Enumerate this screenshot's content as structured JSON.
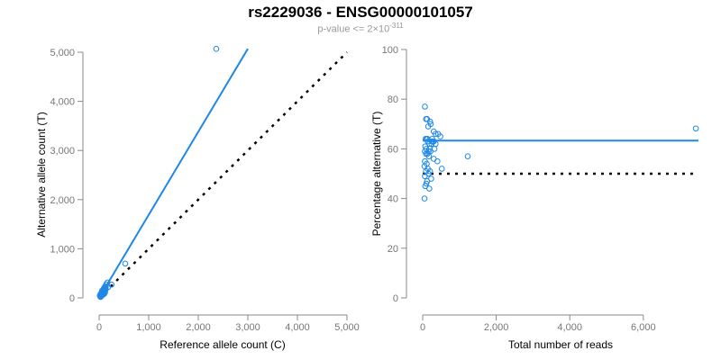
{
  "title": "rs2229036 - ENSG00000101057",
  "subtitle": {
    "prefix": "p-value <= 2",
    "times": "×",
    "base": "10",
    "exponent": "-311"
  },
  "colors": {
    "points": "#1e88e5",
    "line": "#1e88e5",
    "reference": "#000000",
    "axis": "#888888"
  },
  "chart_data": [
    {
      "type": "scatter",
      "xlabel": "Reference allele count (C)",
      "ylabel": "Alternative allele count (T)",
      "xlim": [
        0,
        5000
      ],
      "ylim": [
        0,
        5000
      ],
      "xticks": [
        0,
        1000,
        2000,
        3000,
        4000,
        5000
      ],
      "xtick_labels": [
        "0",
        "1,000",
        "2,000",
        "3,000",
        "4,000",
        "5,000"
      ],
      "yticks": [
        0,
        1000,
        2000,
        3000,
        4000,
        5000
      ],
      "ytick_labels": [
        "0",
        "1,000",
        "2,000",
        "3,000",
        "4,000",
        "5,000"
      ],
      "fit_line": {
        "slope": 1.69,
        "x_end": 3000
      },
      "reference_line": {
        "slope": 1,
        "x_end": 5000
      }
    },
    {
      "type": "scatter",
      "xlabel": "Total number of reads",
      "ylabel": "Percentage alternative (T)",
      "xlim": [
        0,
        7500
      ],
      "ylim": [
        0,
        100
      ],
      "xticks": [
        0,
        2000,
        4000,
        6000
      ],
      "xtick_labels": [
        "0",
        "2,000",
        "4,000",
        "6,000"
      ],
      "yticks": [
        0,
        20,
        40,
        60,
        80,
        100
      ],
      "ytick_labels": [
        "0",
        "20",
        "40",
        "60",
        "80",
        "100"
      ],
      "mean_line": 63.3,
      "reference_line": 50
    }
  ],
  "points": {
    "total": [
      60,
      120,
      90,
      200,
      220,
      150,
      300,
      350,
      420,
      480,
      80,
      110,
      260,
      300,
      140,
      180,
      240,
      70,
      320,
      100,
      160,
      210,
      90,
      130,
      170,
      300,
      60,
      110,
      50,
      520,
      140,
      90,
      200,
      160,
      60,
      230,
      120,
      100,
      70,
      180,
      50,
      400,
      250,
      130,
      1225,
      7430,
      280,
      350,
      60,
      190
    ],
    "pct": [
      77,
      72,
      72,
      71,
      70,
      69,
      67,
      66,
      66,
      65,
      64,
      64,
      64,
      63,
      63,
      62,
      62,
      61,
      60,
      60,
      59,
      59,
      58,
      58,
      57,
      56,
      55,
      54,
      53,
      52,
      52,
      51,
      51,
      50,
      49,
      48,
      47,
      46,
      45,
      44,
      40,
      55,
      63,
      64,
      57,
      68.2,
      63,
      62,
      59,
      60
    ]
  }
}
